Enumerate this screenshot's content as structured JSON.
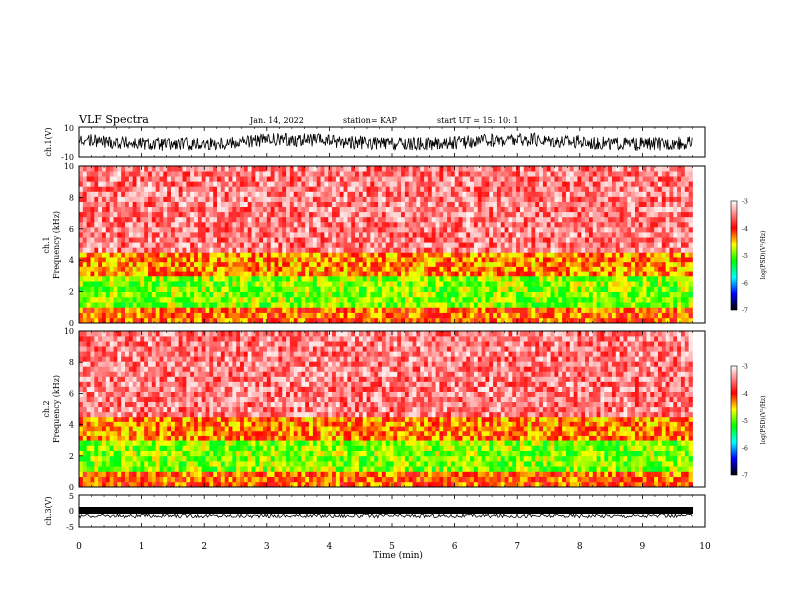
{
  "header": {
    "title": "VLF Spectra",
    "date": "Jan. 14, 2022",
    "station": "station= KAP",
    "start": "start  UT =   15: 10: 1"
  },
  "chart_data": [
    {
      "type": "line",
      "id": "ch1-waveform",
      "ylabel": "ch.1(V)",
      "ylim": [
        -10,
        10
      ],
      "yticks": [
        "10",
        "-10"
      ],
      "xlim": [
        0,
        10
      ],
      "description_values": "dense waveform oscillating roughly between -5 and 5 V over 0-9.8 min"
    },
    {
      "type": "heatmap",
      "id": "ch1-spectrogram",
      "ylabel": "ch.1\nFrequency (kHz)",
      "ylim": [
        0,
        10
      ],
      "yticks": [
        "0",
        "2",
        "4",
        "6",
        "8",
        "10"
      ],
      "xlim": [
        0,
        10
      ],
      "data_extent_min": 9.8,
      "colorbar": {
        "label": "log(PSD)(V²/Hz)",
        "range": [
          -7,
          -3
        ],
        "ticks": [
          "-3",
          "-4",
          "-5",
          "-6",
          "-7"
        ]
      },
      "bands": [
        {
          "from_khz": 0,
          "to_khz": 1,
          "level": -4.2
        },
        {
          "from_khz": 1,
          "to_khz": 3,
          "level": -4.9
        },
        {
          "from_khz": 3,
          "to_khz": 4.5,
          "level": -4.3
        },
        {
          "from_khz": 4.5,
          "to_khz": 10,
          "level": -3.5
        }
      ]
    },
    {
      "type": "heatmap",
      "id": "ch2-spectrogram",
      "ylabel": "ch.2\nFrequency (kHz)",
      "ylim": [
        0,
        10
      ],
      "yticks": [
        "0",
        "2",
        "4",
        "6",
        "8",
        "10"
      ],
      "xlim": [
        0,
        10
      ],
      "data_extent_min": 9.8,
      "colorbar": {
        "label": "log(PSD)(V²/Hz)",
        "range": [
          -7,
          -3
        ],
        "ticks": [
          "-3",
          "-4",
          "-5",
          "-6",
          "-7"
        ]
      },
      "bands": [
        {
          "from_khz": 0,
          "to_khz": 1,
          "level": -4.2
        },
        {
          "from_khz": 1,
          "to_khz": 3,
          "level": -4.9
        },
        {
          "from_khz": 3,
          "to_khz": 4.5,
          "level": -4.3
        },
        {
          "from_khz": 4.5,
          "to_khz": 10,
          "level": -3.5
        }
      ]
    },
    {
      "type": "line",
      "id": "ch3-waveform",
      "ylabel": "ch.3(V)",
      "ylim": [
        -5,
        5
      ],
      "yticks": [
        "5",
        "0",
        "-5"
      ],
      "xlim": [
        0,
        10
      ],
      "description_values": "dense near-constant band around -1.5 V over 0-9.8 min"
    }
  ],
  "xaxis": {
    "label": "Time (min)",
    "ticks": [
      "0",
      "1",
      "2",
      "3",
      "4",
      "5",
      "6",
      "7",
      "8",
      "9",
      "10"
    ]
  },
  "colors": {
    "colormap": [
      "#000000",
      "#0000ff",
      "#00ffff",
      "#00ff00",
      "#ffff00",
      "#ff0000",
      "#ffffff"
    ]
  }
}
